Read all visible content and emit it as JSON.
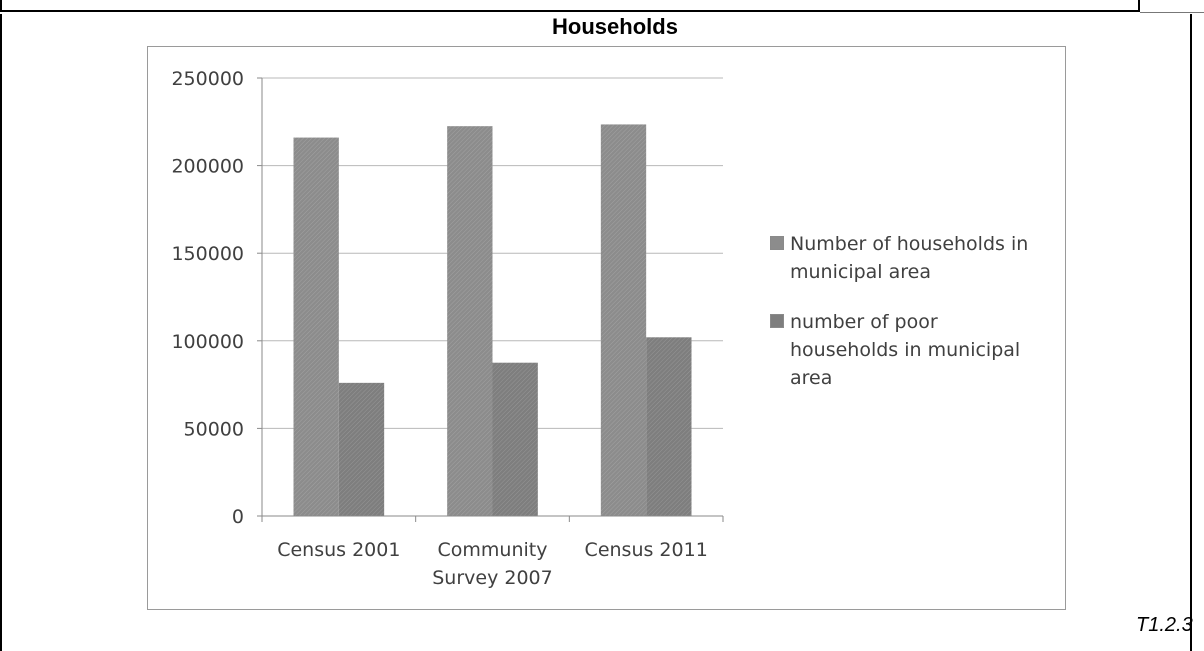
{
  "chart_data": {
    "type": "bar",
    "title": "Households",
    "xlabel": "",
    "ylabel": "",
    "categories": [
      "Census 2001",
      "Community Survey 2007",
      "Census 2011"
    ],
    "category_lines": [
      [
        "Census 2001"
      ],
      [
        "Community",
        "Survey 2007"
      ],
      [
        "Census 2011"
      ]
    ],
    "series": [
      {
        "name": "Number of households in municipal area",
        "legend_lines": [
          "Number of households in",
          "municipal area"
        ],
        "values": [
          216000,
          222500,
          223500
        ],
        "color": "#8c8c8c"
      },
      {
        "name": "number of poor households in municipal area",
        "legend_lines": [
          "number of poor",
          "households in municipal",
          "area"
        ],
        "values": [
          76000,
          87500,
          102000
        ],
        "color": "#7e7e7e"
      }
    ],
    "ylim": [
      0,
      250000
    ],
    "yticks": [
      0,
      50000,
      100000,
      150000,
      200000,
      250000
    ],
    "grid": true,
    "legend_position": "right"
  },
  "page": {
    "reference": "T1.2.3"
  }
}
